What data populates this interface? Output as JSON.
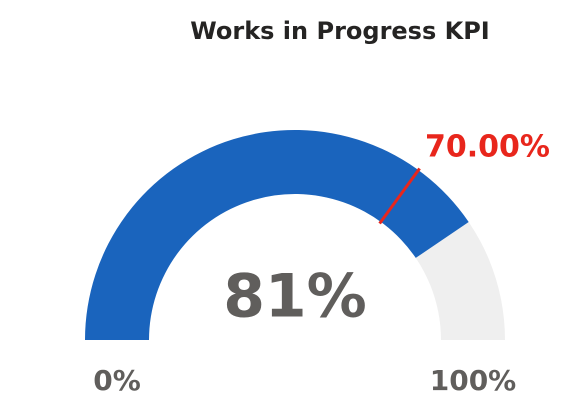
{
  "chart_data": {
    "type": "gauge",
    "title": "Works in Progress KPI",
    "value": 81,
    "value_label": "81%",
    "target": 70,
    "target_label": "70.00%",
    "ylim": [
      0,
      100
    ],
    "yticks": [
      {
        "value": 0,
        "label": "0%"
      },
      {
        "value": 100,
        "label": "100%"
      }
    ],
    "color": "#1a64bd",
    "track_color": "#efefef",
    "target_color": "#e8261c"
  }
}
